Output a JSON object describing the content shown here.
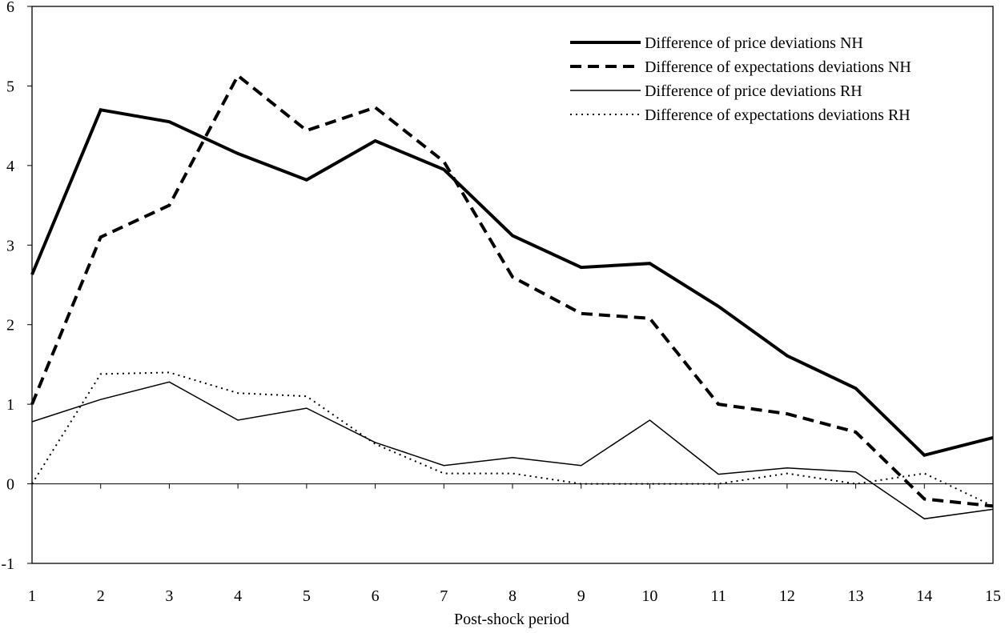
{
  "chart_data": {
    "type": "line",
    "title": "",
    "xlabel": "Post-shock period",
    "ylabel": "",
    "x": [
      1,
      2,
      3,
      4,
      5,
      6,
      7,
      8,
      9,
      10,
      11,
      12,
      13,
      14,
      15
    ],
    "xlim": [
      1,
      15
    ],
    "ylim": [
      -1,
      6
    ],
    "yticks": [
      -1,
      0,
      1,
      2,
      3,
      4,
      5,
      6
    ],
    "grid": false,
    "legend_position": "top-right",
    "series": [
      {
        "name": "Difference of price deviations NH",
        "style": "thick-solid",
        "values": [
          2.63,
          4.7,
          4.55,
          4.15,
          3.82,
          4.31,
          3.95,
          3.12,
          2.72,
          2.77,
          2.23,
          1.61,
          1.2,
          0.36,
          0.58
        ]
      },
      {
        "name": "Difference of expectations deviations NH",
        "style": "thick-dashed",
        "values": [
          1.0,
          3.1,
          3.5,
          5.13,
          4.44,
          4.73,
          4.05,
          2.6,
          2.14,
          2.08,
          1.0,
          0.88,
          0.65,
          -0.19,
          -0.28
        ]
      },
      {
        "name": "Difference of price deviations RH",
        "style": "thin-solid",
        "values": [
          0.78,
          1.06,
          1.28,
          0.8,
          0.95,
          0.52,
          0.23,
          0.33,
          0.23,
          0.8,
          0.12,
          0.2,
          0.15,
          -0.44,
          -0.32
        ]
      },
      {
        "name": "Difference of expectations deviations RH",
        "style": "dotted",
        "values": [
          0.0,
          1.38,
          1.4,
          1.14,
          1.1,
          0.5,
          0.13,
          0.13,
          0.0,
          0.0,
          0.0,
          0.13,
          0.0,
          0.13,
          -0.28
        ]
      }
    ]
  }
}
